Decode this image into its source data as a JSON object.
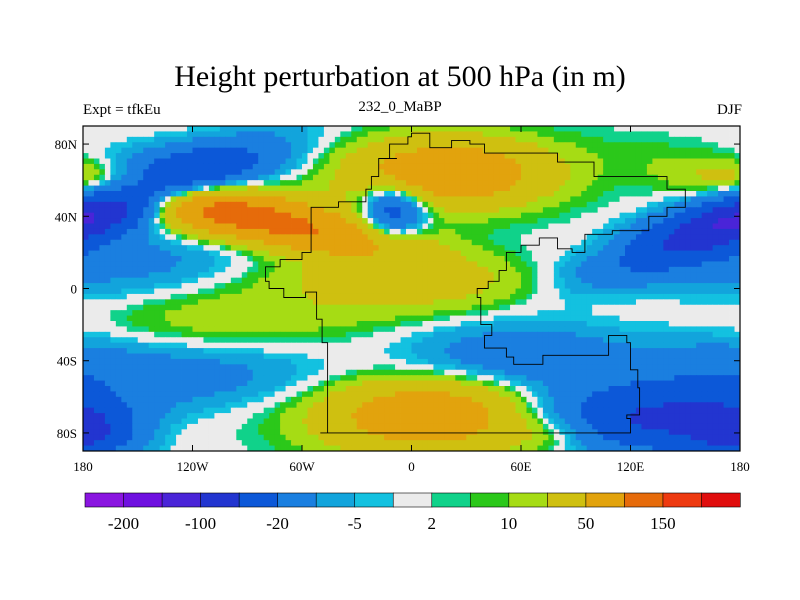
{
  "chart_data": {
    "type": "heatmap",
    "title": "Height perturbation at 500 hPa (in m)",
    "left_string": "Expt = tfkEu",
    "center_string": "232_0_MaBP",
    "right_string": "DJF",
    "x_range": [
      -180,
      180
    ],
    "y_range": [
      -90,
      90
    ],
    "x_ticks": [
      {
        "value": -180,
        "label": "180"
      },
      {
        "value": -120,
        "label": "120W"
      },
      {
        "value": -60,
        "label": "60W"
      },
      {
        "value": 0,
        "label": "0"
      },
      {
        "value": 60,
        "label": "60E"
      },
      {
        "value": 120,
        "label": "120E"
      },
      {
        "value": 180,
        "label": "180"
      }
    ],
    "y_ticks": [
      {
        "value": 80,
        "label": "80N"
      },
      {
        "value": 40,
        "label": "40N"
      },
      {
        "value": 0,
        "label": "0"
      },
      {
        "value": -40,
        "label": "40S"
      },
      {
        "value": -80,
        "label": "80S"
      }
    ],
    "colorbar": {
      "colors": [
        "#8a15e0",
        "#6f10e0",
        "#4a24d8",
        "#2235d0",
        "#0c58d8",
        "#1a7fe0",
        "#12a4dc",
        "#13c1e0",
        "#ebebeb",
        "#10d28a",
        "#2bc81a",
        "#a6dc14",
        "#cfc010",
        "#e2a30d",
        "#e66b0a",
        "#ee3a10",
        "#e00d0d"
      ],
      "labels": [
        "-200",
        "-100",
        "-20",
        "-5",
        "2",
        "10",
        "50",
        "150"
      ]
    },
    "fields": [
      {
        "lon": 190,
        "lat": 43,
        "amp": -165,
        "lonw": 50,
        "latw": 11,
        "tilt": 0.35
      },
      {
        "lon": -10,
        "lat": 43,
        "amp": -80,
        "lonw": 12,
        "latw": 10,
        "tilt": 0
      },
      {
        "lon": -95,
        "lat": 41,
        "amp": 130,
        "lonw": 60,
        "latw": 10,
        "tilt": -0.2
      },
      {
        "lon": 20,
        "lat": 64,
        "amp": 90,
        "lonw": 38,
        "latw": 13,
        "tilt": 0
      },
      {
        "lon": 110,
        "lat": 20,
        "amp": 10,
        "lonw": 15,
        "latw": 6,
        "tilt": 0
      },
      {
        "lon": -125,
        "lat": 70,
        "amp": -22,
        "lonw": 45,
        "latw": 8,
        "tilt": 0
      },
      {
        "lon": -150,
        "lat": 14,
        "amp": -25,
        "lonw": 50,
        "latw": 12,
        "tilt": 0
      },
      {
        "lon": -40,
        "lat": 8,
        "amp": 12,
        "lonw": 55,
        "latw": 7,
        "tilt": 0
      },
      {
        "lon": 5,
        "lat": -2,
        "amp": 20,
        "lonw": 50,
        "latw": 10,
        "tilt": 0
      },
      {
        "lon": 180,
        "lat": -5,
        "amp": -10,
        "lonw": 40,
        "latw": 18,
        "tilt": 0
      },
      {
        "lon": -110,
        "lat": -15,
        "amp": 18,
        "lonw": 70,
        "latw": 14,
        "tilt": 0
      },
      {
        "lon": 60,
        "lat": -38,
        "amp": -40,
        "lonw": 45,
        "latw": 13,
        "tilt": 0
      },
      {
        "lon": 170,
        "lat": -42,
        "amp": -18,
        "lonw": 30,
        "latw": 12,
        "tilt": 0
      },
      {
        "lon": -130,
        "lat": -48,
        "amp": -30,
        "lonw": 60,
        "latw": 12,
        "tilt": 0
      },
      {
        "lon": 10,
        "lat": -70,
        "amp": 85,
        "lonw": 42,
        "latw": 15,
        "tilt": 0
      },
      {
        "lon": 135,
        "lat": -72,
        "amp": -110,
        "lonw": 45,
        "latw": 13,
        "tilt": 0
      },
      {
        "lon": -180,
        "lat": -80,
        "amp": -85,
        "lonw": 18,
        "latw": 10,
        "tilt": 0
      },
      {
        "lon": -135,
        "lat": -78,
        "amp": 5,
        "lonw": 25,
        "latw": 8,
        "tilt": 0
      },
      {
        "lon": 80,
        "lat": -80,
        "amp": 25,
        "lonw": 20,
        "latw": 8,
        "tilt": 0
      }
    ],
    "continents": [
      [
        [
          -50,
          -80
        ],
        [
          -46,
          -60
        ],
        [
          -46,
          -30
        ],
        [
          -49,
          -17
        ],
        [
          -52,
          -2
        ],
        [
          -58,
          -5
        ],
        [
          -62,
          -5
        ],
        [
          -70,
          0
        ],
        [
          -78,
          4
        ],
        [
          -80,
          12
        ],
        [
          -72,
          16
        ],
        [
          -60,
          20
        ],
        [
          -55,
          35
        ],
        [
          -55,
          45
        ],
        [
          -40,
          48
        ],
        [
          -25,
          55
        ],
        [
          -22,
          62
        ],
        [
          -18,
          72
        ],
        [
          -8,
          72
        ],
        [
          -12,
          80
        ],
        [
          -2,
          84
        ],
        [
          0,
          86
        ],
        [
          10,
          86
        ],
        [
          10,
          78
        ],
        [
          18,
          78
        ],
        [
          22,
          82
        ],
        [
          32,
          80
        ],
        [
          40,
          75
        ],
        [
          55,
          75
        ],
        [
          80,
          70
        ],
        [
          100,
          62
        ],
        [
          125,
          62
        ],
        [
          140,
          55
        ],
        [
          150,
          52
        ],
        [
          150,
          45
        ],
        [
          140,
          40
        ],
        [
          130,
          32
        ],
        [
          110,
          30
        ],
        [
          95,
          20
        ],
        [
          88,
          22
        ],
        [
          80,
          28
        ],
        [
          70,
          24
        ],
        [
          60,
          20
        ],
        [
          52,
          10
        ],
        [
          48,
          4
        ],
        [
          42,
          0
        ],
        [
          36,
          -5
        ],
        [
          38,
          -20
        ],
        [
          44,
          -26
        ],
        [
          40,
          -33
        ],
        [
          52,
          -38
        ],
        [
          56,
          -42
        ],
        [
          72,
          -37
        ],
        [
          92,
          -37
        ],
        [
          108,
          -26
        ],
        [
          118,
          -30
        ],
        [
          120,
          -45
        ],
        [
          124,
          -55
        ],
        [
          125,
          -70
        ],
        [
          118,
          -72
        ],
        [
          120,
          -80
        ],
        [
          -50,
          -80
        ]
      ]
    ]
  }
}
